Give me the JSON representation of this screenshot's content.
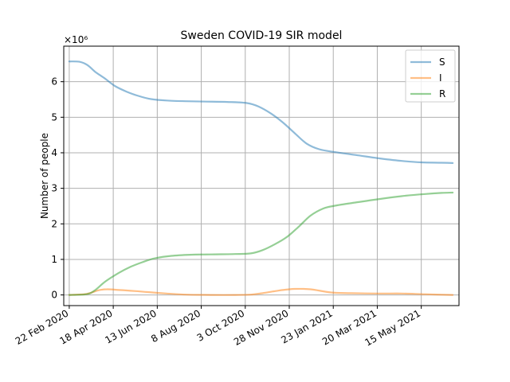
{
  "chart_data": {
    "type": "line",
    "title": "Sweden COVID-19 SIR model",
    "xlabel": "",
    "ylabel": "Number of people",
    "y_multiplier_label": "×10⁶",
    "y_scale": 1000000,
    "ylim": [
      -0.3,
      7.0
    ],
    "yticks": [
      0,
      1,
      2,
      3,
      4,
      5,
      6
    ],
    "xlim": [
      "2020-02-15",
      "2021-07-02"
    ],
    "xticks": [
      "2020-02-22",
      "2020-04-18",
      "2020-06-13",
      "2020-08-08",
      "2020-10-03",
      "2020-11-28",
      "2021-01-23",
      "2021-03-20",
      "2021-05-15"
    ],
    "xtick_labels": [
      "22 Feb 2020",
      "18 Apr 2020",
      "13 Jun 2020",
      "8 Aug 2020",
      "3 Oct 2020",
      "28 Nov 2020",
      "23 Jan 2021",
      "20 Mar 2021",
      "15 May 2021"
    ],
    "grid": true,
    "legend_position": "top-right",
    "series": [
      {
        "name": "S",
        "color": "#1f77b4",
        "points": [
          [
            "2020-02-22",
            6.57
          ],
          [
            "2020-03-06",
            6.56
          ],
          [
            "2020-03-16",
            6.47
          ],
          [
            "2020-03-26",
            6.28
          ],
          [
            "2020-04-08",
            6.08
          ],
          [
            "2020-04-20",
            5.88
          ],
          [
            "2020-05-05",
            5.72
          ],
          [
            "2020-05-20",
            5.6
          ],
          [
            "2020-06-05",
            5.51
          ],
          [
            "2020-06-25",
            5.47
          ],
          [
            "2020-07-20",
            5.45
          ],
          [
            "2020-08-15",
            5.44
          ],
          [
            "2020-09-10",
            5.43
          ],
          [
            "2020-10-05",
            5.4
          ],
          [
            "2020-10-20",
            5.3
          ],
          [
            "2020-11-05",
            5.1
          ],
          [
            "2020-11-20",
            4.85
          ],
          [
            "2020-12-05",
            4.55
          ],
          [
            "2020-12-20",
            4.26
          ],
          [
            "2021-01-05",
            4.1
          ],
          [
            "2021-01-25",
            4.02
          ],
          [
            "2021-02-20",
            3.94
          ],
          [
            "2021-03-20",
            3.85
          ],
          [
            "2021-04-20",
            3.77
          ],
          [
            "2021-05-15",
            3.73
          ],
          [
            "2021-06-10",
            3.72
          ],
          [
            "2021-06-24",
            3.71
          ]
        ]
      },
      {
        "name": "I",
        "color": "#ff7f0e",
        "points": [
          [
            "2020-02-22",
            0.0
          ],
          [
            "2020-03-15",
            0.03
          ],
          [
            "2020-03-30",
            0.13
          ],
          [
            "2020-04-10",
            0.16
          ],
          [
            "2020-04-25",
            0.14
          ],
          [
            "2020-05-15",
            0.11
          ],
          [
            "2020-06-01",
            0.08
          ],
          [
            "2020-06-25",
            0.04
          ],
          [
            "2020-07-20",
            0.01
          ],
          [
            "2020-08-20",
            0.0
          ],
          [
            "2020-09-20",
            0.0
          ],
          [
            "2020-10-10",
            0.01
          ],
          [
            "2020-10-25",
            0.05
          ],
          [
            "2020-11-08",
            0.1
          ],
          [
            "2020-11-20",
            0.14
          ],
          [
            "2020-12-05",
            0.17
          ],
          [
            "2020-12-25",
            0.16
          ],
          [
            "2021-01-20",
            0.07
          ],
          [
            "2021-02-15",
            0.05
          ],
          [
            "2021-03-20",
            0.04
          ],
          [
            "2021-04-20",
            0.04
          ],
          [
            "2021-05-20",
            0.02
          ],
          [
            "2021-06-24",
            0.0
          ]
        ]
      },
      {
        "name": "R",
        "color": "#2ca02c",
        "points": [
          [
            "2020-02-22",
            0.0
          ],
          [
            "2020-03-15",
            0.02
          ],
          [
            "2020-03-25",
            0.12
          ],
          [
            "2020-04-08",
            0.38
          ],
          [
            "2020-04-25",
            0.62
          ],
          [
            "2020-05-10",
            0.79
          ],
          [
            "2020-05-25",
            0.92
          ],
          [
            "2020-06-10",
            1.03
          ],
          [
            "2020-07-01",
            1.1
          ],
          [
            "2020-07-25",
            1.13
          ],
          [
            "2020-08-20",
            1.14
          ],
          [
            "2020-09-20",
            1.15
          ],
          [
            "2020-10-10",
            1.17
          ],
          [
            "2020-10-25",
            1.26
          ],
          [
            "2020-11-10",
            1.43
          ],
          [
            "2020-11-25",
            1.63
          ],
          [
            "2020-12-10",
            1.92
          ],
          [
            "2020-12-25",
            2.23
          ],
          [
            "2021-01-10",
            2.43
          ],
          [
            "2021-01-25",
            2.51
          ],
          [
            "2021-02-20",
            2.6
          ],
          [
            "2021-03-20",
            2.69
          ],
          [
            "2021-04-20",
            2.78
          ],
          [
            "2021-05-20",
            2.84
          ],
          [
            "2021-06-10",
            2.87
          ],
          [
            "2021-06-24",
            2.88
          ]
        ]
      }
    ]
  }
}
